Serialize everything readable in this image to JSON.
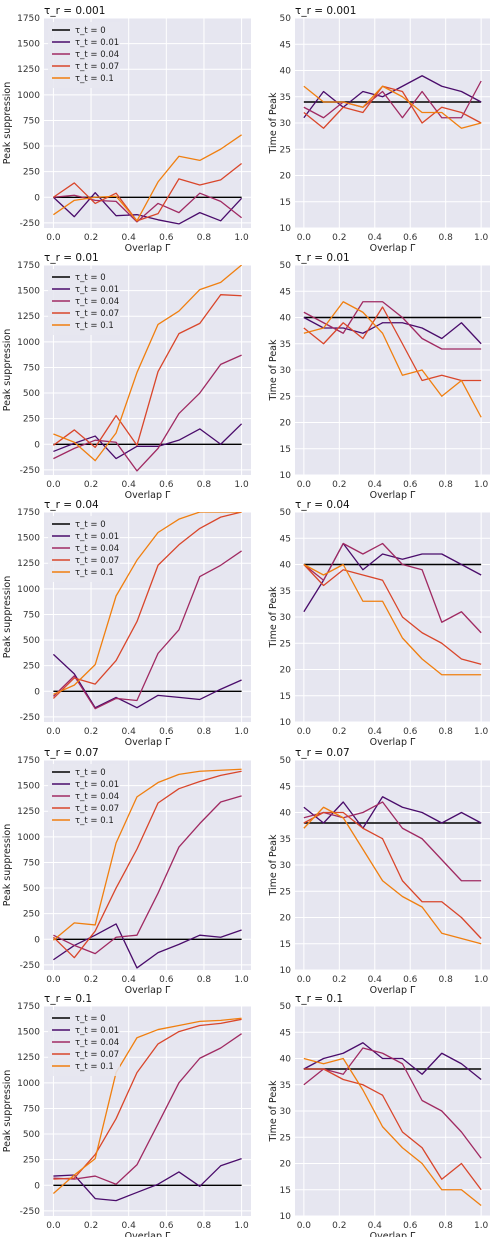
{
  "palette": {
    "panel_bg": "#e6e6f0",
    "grid": "#ffffff",
    "series_colors": [
      "#000000",
      "#4a0c6b",
      "#a02a62",
      "#d9462b",
      "#f07f0f"
    ]
  },
  "legend_labels": [
    "τ_t = 0",
    "τ_t = 0.01",
    "τ_t = 0.04",
    "τ_t = 0.07",
    "τ_t = 0.1"
  ],
  "chart_data": [
    {
      "type": "line",
      "title": "τ_r = 0.001",
      "xlabel": "Overlap Γ",
      "ylabel": "Peak suppression",
      "xlim": [
        0,
        1
      ],
      "ylim": [
        -300,
        1750
      ],
      "yticks": [
        -250,
        0,
        250,
        500,
        750,
        1000,
        1250,
        1500,
        1750
      ],
      "xticks": [
        0.0,
        0.2,
        0.4,
        0.6,
        0.8,
        1.0
      ],
      "legend": "top-left",
      "x": [
        0,
        0.111,
        0.222,
        0.333,
        0.444,
        0.556,
        0.667,
        0.778,
        0.889,
        1.0
      ],
      "series": [
        {
          "name": "τ_t = 0",
          "values": [
            0,
            0,
            0,
            0,
            0,
            0,
            0,
            0,
            0,
            0
          ]
        },
        {
          "name": "τ_t = 0.01",
          "values": [
            0,
            -190,
            45,
            -180,
            -170,
            -220,
            -260,
            -150,
            -230,
            -10
          ]
        },
        {
          "name": "τ_t = 0.04",
          "values": [
            0,
            20,
            -30,
            -40,
            -240,
            -60,
            -150,
            40,
            -40,
            -200
          ]
        },
        {
          "name": "τ_t = 0.07",
          "values": [
            0,
            140,
            -60,
            40,
            -230,
            -160,
            180,
            120,
            170,
            330
          ]
        },
        {
          "name": "τ_t = 0.1",
          "values": [
            -170,
            -30,
            0,
            10,
            -230,
            150,
            400,
            360,
            470,
            610
          ]
        }
      ]
    },
    {
      "type": "line",
      "title": "τ_r = 0.001",
      "xlabel": "Overlap Γ",
      "ylabel": "Time of Peak",
      "xlim": [
        0,
        1
      ],
      "ylim": [
        10,
        50
      ],
      "yticks": [
        10,
        15,
        20,
        25,
        30,
        35,
        40,
        45,
        50
      ],
      "xticks": [
        0.0,
        0.2,
        0.4,
        0.6,
        0.8,
        1.0
      ],
      "legend": "none",
      "x": [
        0,
        0.111,
        0.222,
        0.333,
        0.444,
        0.556,
        0.667,
        0.778,
        0.889,
        1.0
      ],
      "series": [
        {
          "name": "τ_t = 0",
          "values": [
            34,
            34,
            34,
            34,
            34,
            34,
            34,
            34,
            34,
            34
          ]
        },
        {
          "name": "τ_t = 0.01",
          "values": [
            31,
            36,
            33,
            36,
            35,
            37,
            39,
            37,
            36,
            34
          ]
        },
        {
          "name": "τ_t = 0.04",
          "values": [
            33,
            31,
            34,
            33,
            36,
            31,
            36,
            31,
            31,
            38
          ]
        },
        {
          "name": "τ_t = 0.07",
          "values": [
            32,
            29,
            33,
            32,
            37,
            36,
            30,
            33,
            32,
            30
          ]
        },
        {
          "name": "τ_t = 0.1",
          "values": [
            37,
            34,
            34,
            33,
            37,
            35,
            32,
            32,
            29,
            30
          ]
        }
      ]
    },
    {
      "type": "line",
      "title": "τ_r = 0.01",
      "xlabel": "Overlap Γ",
      "ylabel": "Peak suppression",
      "xlim": [
        0,
        1
      ],
      "ylim": [
        -300,
        1750
      ],
      "yticks": [
        -250,
        0,
        250,
        500,
        750,
        1000,
        1250,
        1500,
        1750
      ],
      "xticks": [
        0.0,
        0.2,
        0.4,
        0.6,
        0.8,
        1.0
      ],
      "legend": "top-left",
      "x": [
        0,
        0.111,
        0.222,
        0.333,
        0.444,
        0.556,
        0.667,
        0.778,
        0.889,
        1.0
      ],
      "series": [
        {
          "name": "τ_t = 0",
          "values": [
            0,
            0,
            0,
            0,
            0,
            0,
            0,
            0,
            0,
            0
          ]
        },
        {
          "name": "τ_t = 0.01",
          "values": [
            -70,
            10,
            80,
            -140,
            -20,
            -20,
            40,
            150,
            0,
            200
          ]
        },
        {
          "name": "τ_t = 0.04",
          "values": [
            -140,
            -40,
            40,
            20,
            -260,
            -40,
            300,
            500,
            780,
            870
          ]
        },
        {
          "name": "τ_t = 0.07",
          "values": [
            -10,
            140,
            -30,
            280,
            -10,
            710,
            1080,
            1180,
            1460,
            1450
          ]
        },
        {
          "name": "τ_t = 0.1",
          "values": [
            100,
            20,
            -160,
            110,
            700,
            1170,
            1300,
            1510,
            1580,
            1750
          ]
        }
      ]
    },
    {
      "type": "line",
      "title": "τ_r = 0.01",
      "xlabel": "Overlap Γ",
      "ylabel": "Time of Peak",
      "xlim": [
        0,
        1
      ],
      "ylim": [
        10,
        50
      ],
      "yticks": [
        10,
        15,
        20,
        25,
        30,
        35,
        40,
        45,
        50
      ],
      "xticks": [
        0.0,
        0.2,
        0.4,
        0.6,
        0.8,
        1.0
      ],
      "legend": "none",
      "x": [
        0,
        0.111,
        0.222,
        0.333,
        0.444,
        0.556,
        0.667,
        0.778,
        0.889,
        1.0
      ],
      "series": [
        {
          "name": "τ_t = 0",
          "values": [
            40,
            40,
            40,
            40,
            40,
            40,
            40,
            40,
            40,
            40
          ]
        },
        {
          "name": "τ_t = 0.01",
          "values": [
            40,
            38,
            38,
            37,
            39,
            39,
            38,
            36,
            39,
            35
          ]
        },
        {
          "name": "τ_t = 0.04",
          "values": [
            41,
            39,
            37,
            43,
            43,
            40,
            36,
            34,
            34,
            34
          ]
        },
        {
          "name": "τ_t = 0.07",
          "values": [
            38,
            35,
            39,
            36,
            42,
            35,
            28,
            29,
            28,
            28
          ]
        },
        {
          "name": "τ_t = 0.1",
          "values": [
            37,
            38,
            43,
            41,
            37,
            29,
            30,
            25,
            28,
            21
          ]
        }
      ]
    },
    {
      "type": "line",
      "title": "τ_r = 0.04",
      "xlabel": "Overlap Γ",
      "ylabel": "Peak suppression",
      "xlim": [
        0,
        1
      ],
      "ylim": [
        -300,
        1750
      ],
      "yticks": [
        -250,
        0,
        250,
        500,
        750,
        1000,
        1250,
        1500,
        1750
      ],
      "xticks": [
        0.0,
        0.2,
        0.4,
        0.6,
        0.8,
        1.0
      ],
      "legend": "top-left",
      "x": [
        0,
        0.111,
        0.222,
        0.333,
        0.444,
        0.556,
        0.667,
        0.778,
        0.889,
        1.0
      ],
      "series": [
        {
          "name": "τ_t = 0",
          "values": [
            0,
            0,
            0,
            0,
            0,
            0,
            0,
            0,
            0,
            0
          ]
        },
        {
          "name": "τ_t = 0.01",
          "values": [
            360,
            170,
            -160,
            -60,
            -160,
            -40,
            -60,
            -80,
            20,
            110
          ]
        },
        {
          "name": "τ_t = 0.04",
          "values": [
            -50,
            150,
            -170,
            -70,
            -90,
            370,
            600,
            1120,
            1230,
            1370
          ]
        },
        {
          "name": "τ_t = 0.07",
          "values": [
            -70,
            130,
            70,
            300,
            680,
            1230,
            1430,
            1590,
            1700,
            1750
          ]
        },
        {
          "name": "τ_t = 0.1",
          "values": [
            -30,
            60,
            260,
            930,
            1280,
            1550,
            1680,
            1750,
            1750,
            1750
          ]
        }
      ]
    },
    {
      "type": "line",
      "title": "τ_r = 0.04",
      "xlabel": "Overlap Γ",
      "ylabel": "Time of Peak",
      "xlim": [
        0,
        1
      ],
      "ylim": [
        10,
        50
      ],
      "yticks": [
        10,
        15,
        20,
        25,
        30,
        35,
        40,
        45,
        50
      ],
      "xticks": [
        0.0,
        0.2,
        0.4,
        0.6,
        0.8,
        1.0
      ],
      "legend": "none",
      "x": [
        0,
        0.111,
        0.222,
        0.333,
        0.444,
        0.556,
        0.667,
        0.778,
        0.889,
        1.0
      ],
      "series": [
        {
          "name": "τ_t = 0",
          "values": [
            40,
            40,
            40,
            40,
            40,
            40,
            40,
            40,
            40,
            40
          ]
        },
        {
          "name": "τ_t = 0.01",
          "values": [
            31,
            37,
            44,
            39,
            42,
            41,
            42,
            42,
            40,
            38
          ]
        },
        {
          "name": "τ_t = 0.04",
          "values": [
            40,
            37,
            44,
            42,
            44,
            40,
            39,
            29,
            31,
            27
          ]
        },
        {
          "name": "τ_t = 0.07",
          "values": [
            40,
            36,
            39,
            38,
            37,
            30,
            27,
            25,
            22,
            21
          ]
        },
        {
          "name": "τ_t = 0.1",
          "values": [
            40,
            38,
            40,
            33,
            33,
            26,
            22,
            19,
            19,
            19
          ]
        }
      ]
    },
    {
      "type": "line",
      "title": "τ_r = 0.07",
      "xlabel": "Overlap Γ",
      "ylabel": "Peak suppression",
      "xlim": [
        0,
        1
      ],
      "ylim": [
        -300,
        1750
      ],
      "yticks": [
        -250,
        0,
        250,
        500,
        750,
        1000,
        1250,
        1500,
        1750
      ],
      "xticks": [
        0.0,
        0.2,
        0.4,
        0.6,
        0.8,
        1.0
      ],
      "legend": "top-left",
      "x": [
        0,
        0.111,
        0.222,
        0.333,
        0.444,
        0.556,
        0.667,
        0.778,
        0.889,
        1.0
      ],
      "series": [
        {
          "name": "τ_t = 0",
          "values": [
            0,
            0,
            0,
            0,
            0,
            0,
            0,
            0,
            0,
            0
          ]
        },
        {
          "name": "τ_t = 0.01",
          "values": [
            -200,
            -60,
            40,
            150,
            -280,
            -130,
            -50,
            40,
            20,
            90
          ]
        },
        {
          "name": "τ_t = 0.04",
          "values": [
            40,
            -60,
            -140,
            20,
            40,
            450,
            900,
            1130,
            1340,
            1400
          ]
        },
        {
          "name": "τ_t = 0.07",
          "values": [
            20,
            -180,
            80,
            500,
            880,
            1330,
            1470,
            1540,
            1600,
            1640
          ]
        },
        {
          "name": "τ_t = 0.1",
          "values": [
            -10,
            160,
            140,
            940,
            1390,
            1530,
            1610,
            1640,
            1650,
            1660
          ]
        }
      ]
    },
    {
      "type": "line",
      "title": "τ_r = 0.07",
      "xlabel": "Overlap Γ",
      "ylabel": "Time of Peak",
      "xlim": [
        0,
        1
      ],
      "ylim": [
        10,
        50
      ],
      "yticks": [
        10,
        15,
        20,
        25,
        30,
        35,
        40,
        45,
        50
      ],
      "xticks": [
        0.0,
        0.2,
        0.4,
        0.6,
        0.8,
        1.0
      ],
      "legend": "none",
      "x": [
        0,
        0.111,
        0.222,
        0.333,
        0.444,
        0.556,
        0.667,
        0.778,
        0.889,
        1.0
      ],
      "series": [
        {
          "name": "τ_t = 0",
          "values": [
            38,
            38,
            38,
            38,
            38,
            38,
            38,
            38,
            38,
            38
          ]
        },
        {
          "name": "τ_t = 0.01",
          "values": [
            41,
            38,
            42,
            37,
            43,
            41,
            40,
            38,
            40,
            38
          ]
        },
        {
          "name": "τ_t = 0.04",
          "values": [
            39,
            40,
            39,
            40,
            42,
            37,
            35,
            31,
            27,
            27
          ]
        },
        {
          "name": "τ_t = 0.07",
          "values": [
            38,
            40,
            40,
            37,
            35,
            27,
            23,
            23,
            20,
            16
          ]
        },
        {
          "name": "τ_t = 0.1",
          "values": [
            37,
            41,
            39,
            33,
            27,
            24,
            22,
            17,
            16,
            15
          ]
        }
      ]
    },
    {
      "type": "line",
      "title": "τ_r = 0.1",
      "xlabel": "Overlap Γ",
      "ylabel": "Peak suppression",
      "xlim": [
        0,
        1
      ],
      "ylim": [
        -300,
        1750
      ],
      "yticks": [
        -250,
        0,
        250,
        500,
        750,
        1000,
        1250,
        1500,
        1750
      ],
      "xticks": [
        0.0,
        0.2,
        0.4,
        0.6,
        0.8,
        1.0
      ],
      "legend": "top-left",
      "x": [
        0,
        0.111,
        0.222,
        0.333,
        0.444,
        0.556,
        0.667,
        0.778,
        0.889,
        1.0
      ],
      "series": [
        {
          "name": "τ_t = 0",
          "values": [
            0,
            0,
            0,
            0,
            0,
            0,
            0,
            0,
            0,
            0
          ]
        },
        {
          "name": "τ_t = 0.01",
          "values": [
            90,
            100,
            -130,
            -150,
            -70,
            10,
            130,
            -10,
            190,
            260
          ]
        },
        {
          "name": "τ_t = 0.04",
          "values": [
            70,
            60,
            90,
            10,
            200,
            600,
            1000,
            1240,
            1340,
            1480
          ]
        },
        {
          "name": "τ_t = 0.07",
          "values": [
            60,
            70,
            300,
            650,
            1100,
            1380,
            1500,
            1560,
            1580,
            1620
          ]
        },
        {
          "name": "τ_t = 0.1",
          "values": [
            -80,
            100,
            260,
            1100,
            1440,
            1520,
            1560,
            1600,
            1610,
            1630
          ]
        }
      ]
    },
    {
      "type": "line",
      "title": "τ_r = 0.1",
      "xlabel": "Overlap Γ",
      "ylabel": "Time of Peak",
      "xlim": [
        0,
        1
      ],
      "ylim": [
        10,
        50
      ],
      "yticks": [
        10,
        15,
        20,
        25,
        30,
        35,
        40,
        45,
        50
      ],
      "xticks": [
        0.0,
        0.2,
        0.4,
        0.6,
        0.8,
        1.0
      ],
      "legend": "none",
      "x": [
        0,
        0.111,
        0.222,
        0.333,
        0.444,
        0.556,
        0.667,
        0.778,
        0.889,
        1.0
      ],
      "series": [
        {
          "name": "τ_t = 0",
          "values": [
            38,
            38,
            38,
            38,
            38,
            38,
            38,
            38,
            38,
            38
          ]
        },
        {
          "name": "τ_t = 0.01",
          "values": [
            38,
            40,
            41,
            43,
            40,
            40,
            37,
            41,
            39,
            36
          ]
        },
        {
          "name": "τ_t = 0.04",
          "values": [
            35,
            38,
            37,
            42,
            41,
            39,
            32,
            30,
            26,
            21
          ]
        },
        {
          "name": "τ_t = 0.07",
          "values": [
            38,
            38,
            36,
            35,
            33,
            26,
            23,
            17,
            20,
            15
          ]
        },
        {
          "name": "τ_t = 0.1",
          "values": [
            40,
            39,
            40,
            34,
            27,
            23,
            20,
            15,
            15,
            12
          ]
        }
      ]
    }
  ]
}
